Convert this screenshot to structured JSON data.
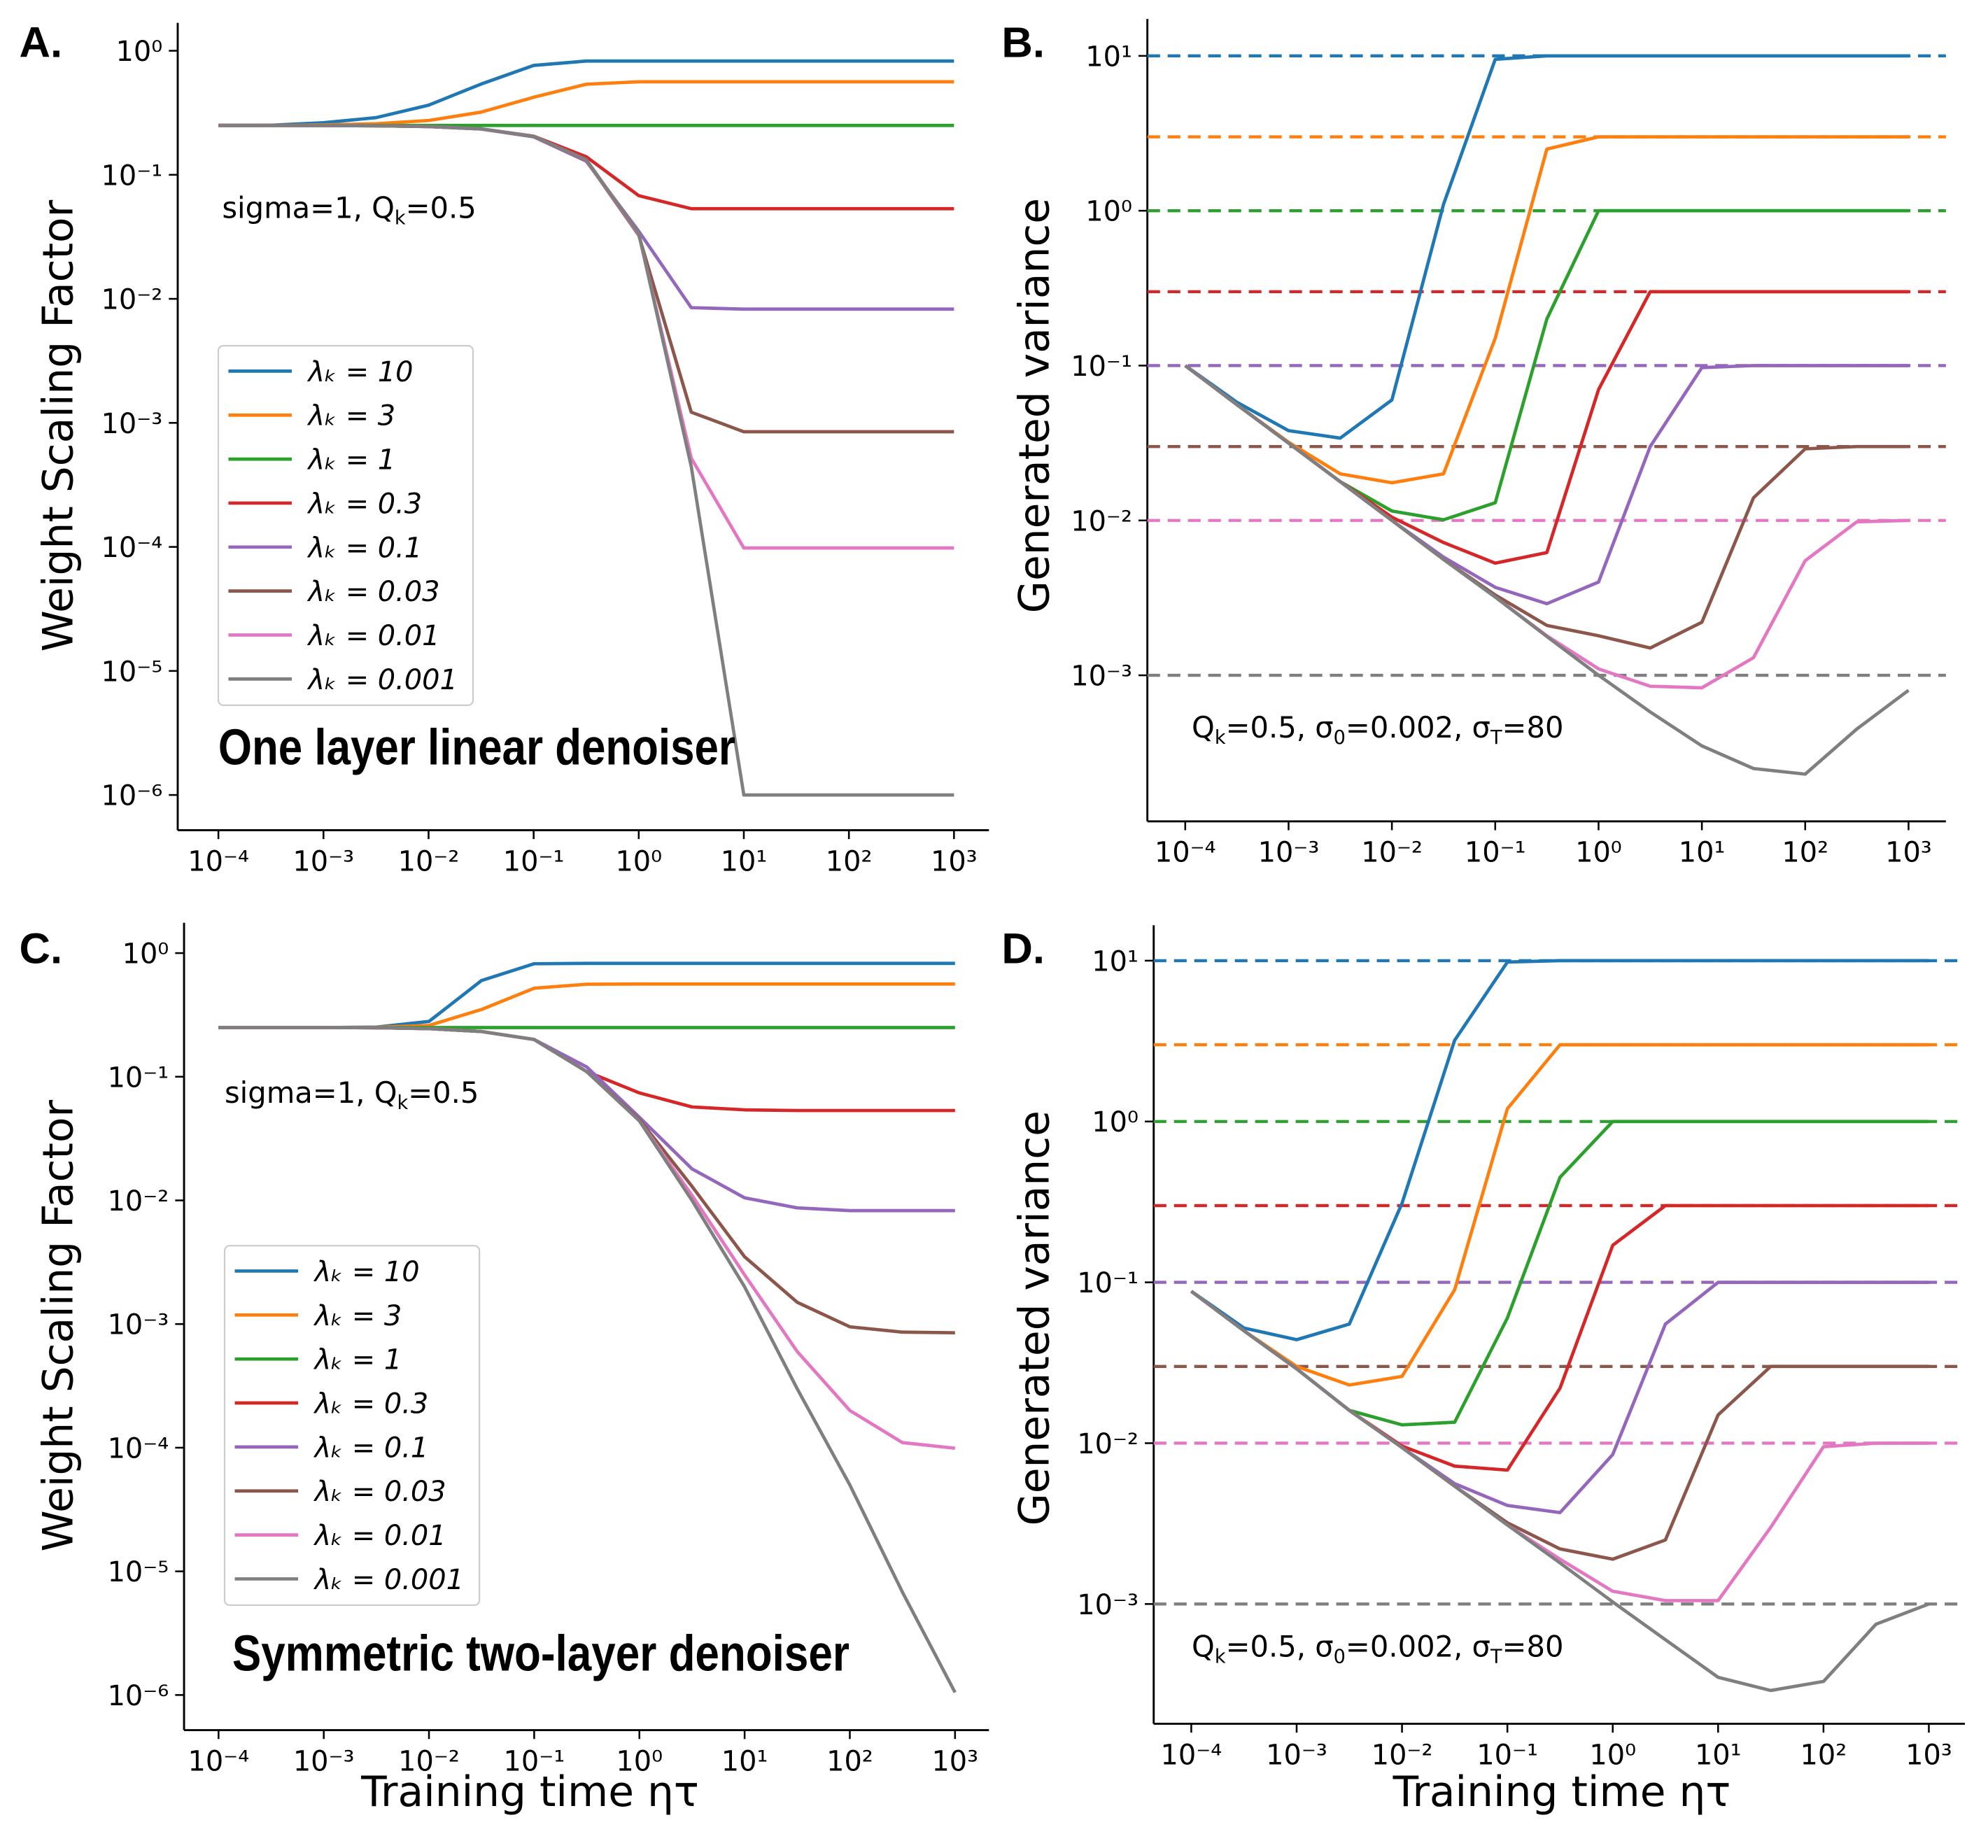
{
  "chart_data": [
    {
      "type": "line",
      "label": "A.",
      "ylabel": "Weight Scaling Factor",
      "title": "One layer linear denoiser",
      "annotation": [
        "sigma=1, Q",
        "k",
        "=0.5"
      ],
      "xscale": "log",
      "yscale": "log",
      "legend": "center left",
      "xlim": [
        4.1e-05,
        2150
      ],
      "ylim": [
        5.2e-07,
        1.68
      ],
      "xticks": [
        {
          "value": 0.0001,
          "label": "10⁻⁴"
        },
        {
          "value": 0.001,
          "label": "10⁻³"
        },
        {
          "value": 0.01,
          "label": "10⁻²"
        },
        {
          "value": 0.1,
          "label": "10⁻¹"
        },
        {
          "value": 1,
          "label": "10⁰"
        },
        {
          "value": 10,
          "label": "10¹"
        },
        {
          "value": 100,
          "label": "10²"
        },
        {
          "value": 1000,
          "label": "10³"
        }
      ],
      "yticks": [
        {
          "value": 1,
          "label": "10⁰"
        },
        {
          "value": 0.1,
          "label": "10⁻¹"
        },
        {
          "value": 0.01,
          "label": "10⁻²"
        },
        {
          "value": 0.001,
          "label": "10⁻³"
        },
        {
          "value": 0.0001,
          "label": "10⁻⁴"
        },
        {
          "value": 1e-05,
          "label": "10⁻⁵"
        },
        {
          "value": 1e-06,
          "label": "10⁻⁶"
        }
      ],
      "x": [
        0.0001,
        0.000316,
        0.001,
        0.00316,
        0.01,
        0.0316,
        0.1,
        0.316,
        1,
        3.16,
        10,
        31.6,
        100,
        316,
        1000
      ],
      "series": [
        {
          "name": "λₖ = 10",
          "color": "#1f77b4",
          "values": [
            0.25,
            0.251,
            0.263,
            0.289,
            0.364,
            0.539,
            0.762,
            0.826,
            0.826,
            0.826,
            0.826,
            0.826,
            0.826,
            0.826,
            0.826
          ]
        },
        {
          "name": "λₖ = 3",
          "color": "#ff7f0e",
          "values": [
            0.25,
            0.25,
            0.2525,
            0.258,
            0.274,
            0.32,
            0.422,
            0.537,
            0.5624,
            0.5625,
            0.5625,
            0.5625,
            0.5625,
            0.5625,
            0.5625
          ]
        },
        {
          "name": "λₖ = 1",
          "color": "#2ca02c",
          "values": [
            0.25,
            0.25,
            0.25,
            0.25,
            0.25,
            0.25,
            0.25,
            0.25,
            0.25,
            0.25,
            0.25,
            0.25,
            0.25,
            0.25,
            0.25
          ]
        },
        {
          "name": "λₖ = 0.3",
          "color": "#d62728",
          "values": [
            0.25,
            0.25,
            0.2495,
            0.2484,
            0.245,
            0.2345,
            0.205,
            0.14,
            0.0679,
            0.0533,
            0.0533,
            0.0533,
            0.0533,
            0.0533,
            0.0533
          ]
        },
        {
          "name": "λₖ = 0.1",
          "color": "#9467bd",
          "values": [
            0.25,
            0.25,
            0.2498,
            0.2485,
            0.2447,
            0.2338,
            0.2024,
            0.129,
            0.0351,
            0.00849,
            0.00826,
            0.00826,
            0.00826,
            0.00826,
            0.00826
          ]
        },
        {
          "name": "λₖ = 0.03",
          "color": "#8c564b",
          "values": [
            0.25,
            0.25,
            0.2498,
            0.2484,
            0.2449,
            0.2343,
            0.2036,
            0.1309,
            0.0326,
            0.00122,
            0.000848,
            0.000848,
            0.000848,
            0.000848,
            0.000848
          ]
        },
        {
          "name": "λₖ = 0.01",
          "color": "#e377c2",
          "values": [
            0.25,
            0.25,
            0.2498,
            0.2484,
            0.245,
            0.2345,
            0.2043,
            0.132,
            0.0333,
            0.00052,
            9.8e-05,
            9.8e-05,
            9.8e-05,
            9.8e-05,
            9.8e-05
          ]
        },
        {
          "name": "λₖ = 0.001",
          "color": "#7f7f7f",
          "values": [
            0.25,
            0.25,
            0.2498,
            0.2484,
            0.245,
            0.2347,
            0.2047,
            0.1327,
            0.0338,
            0.000445,
            1e-06,
            1e-06,
            1e-06,
            1e-06,
            1e-06
          ]
        }
      ]
    },
    {
      "type": "line",
      "label": "B.",
      "ylabel": "Generated variance",
      "annotation": [
        "Q",
        "k",
        "=0.5, σ",
        "0",
        "=0.002, σ",
        "T",
        "=80"
      ],
      "xscale": "log",
      "yscale": "log",
      "reference_style": "dashed",
      "xlim": [
        4.3e-05,
        2300
      ],
      "ylim": [
        0.000114,
        17.3
      ],
      "xticks": [
        {
          "value": 0.0001,
          "label": "10⁻⁴"
        },
        {
          "value": 0.001,
          "label": "10⁻³"
        },
        {
          "value": 0.01,
          "label": "10⁻²"
        },
        {
          "value": 0.1,
          "label": "10⁻¹"
        },
        {
          "value": 1,
          "label": "10⁰"
        },
        {
          "value": 10,
          "label": "10¹"
        },
        {
          "value": 100,
          "label": "10²"
        },
        {
          "value": 1000,
          "label": "10³"
        }
      ],
      "yticks": [
        {
          "value": 10,
          "label": "10¹"
        },
        {
          "value": 1,
          "label": "10⁰"
        },
        {
          "value": 0.1,
          "label": "10⁻¹"
        },
        {
          "value": 0.01,
          "label": "10⁻²"
        },
        {
          "value": 0.001,
          "label": "10⁻³"
        }
      ],
      "x": [
        0.0001,
        0.000316,
        0.001,
        0.00316,
        0.01,
        0.0316,
        0.1,
        0.316,
        1,
        3.16,
        10,
        31.6,
        100,
        316,
        1000
      ],
      "series": [
        {
          "color": "#1f77b4",
          "reference": 10,
          "values": [
            0.1,
            0.058,
            0.038,
            0.034,
            0.06,
            1.1,
            9.5,
            10,
            10,
            10,
            10,
            10,
            10,
            10,
            10
          ]
        },
        {
          "color": "#ff7f0e",
          "reference": 3,
          "values": [
            0.1,
            0.056,
            0.032,
            0.02,
            0.0175,
            0.02,
            0.15,
            2.5,
            3,
            3,
            3,
            3,
            3,
            3,
            3
          ]
        },
        {
          "color": "#2ca02c",
          "reference": 1,
          "values": [
            0.1,
            0.056,
            0.0316,
            0.0178,
            0.0115,
            0.0101,
            0.013,
            0.2,
            1,
            1,
            1,
            1,
            1,
            1,
            1
          ]
        },
        {
          "color": "#d62728",
          "reference": 0.3,
          "values": [
            0.1,
            0.056,
            0.0316,
            0.0178,
            0.0105,
            0.0072,
            0.0053,
            0.0062,
            0.07,
            0.3,
            0.3,
            0.3,
            0.3,
            0.3,
            0.3
          ]
        },
        {
          "color": "#9467bd",
          "reference": 0.1,
          "values": [
            0.1,
            0.056,
            0.0316,
            0.0178,
            0.01,
            0.0058,
            0.0037,
            0.0029,
            0.004,
            0.03,
            0.097,
            0.1,
            0.1,
            0.1,
            0.1
          ]
        },
        {
          "color": "#8c564b",
          "reference": 0.03,
          "values": [
            0.1,
            0.056,
            0.0316,
            0.0178,
            0.01,
            0.0056,
            0.0033,
            0.0021,
            0.0018,
            0.0015,
            0.0022,
            0.014,
            0.029,
            0.03,
            0.03
          ]
        },
        {
          "color": "#e377c2",
          "reference": 0.01,
          "values": [
            0.1,
            0.056,
            0.0316,
            0.0178,
            0.01,
            0.0056,
            0.0032,
            0.0018,
            0.0011,
            0.00085,
            0.00083,
            0.0013,
            0.0055,
            0.0098,
            0.01
          ]
        },
        {
          "color": "#7f7f7f",
          "reference": 0.001,
          "values": [
            0.1,
            0.056,
            0.0316,
            0.0178,
            0.01,
            0.0056,
            0.0032,
            0.00178,
            0.001,
            0.00058,
            0.00035,
            0.00025,
            0.00023,
            0.00045,
            0.0008
          ]
        }
      ]
    },
    {
      "type": "line",
      "label": "C.",
      "ylabel": "Weight Scaling Factor",
      "xlabel": "Training time ητ",
      "title": "Symmetric two-layer denoiser",
      "annotation": [
        "sigma=1, Q",
        "k",
        "=0.5"
      ],
      "xscale": "log",
      "yscale": "log",
      "legend": "center left",
      "xlim": [
        4.7e-05,
        2100
      ],
      "ylim": [
        5.2e-07,
        1.76
      ],
      "xticks": [
        {
          "value": 0.0001,
          "label": "10⁻⁴"
        },
        {
          "value": 0.001,
          "label": "10⁻³"
        },
        {
          "value": 0.01,
          "label": "10⁻²"
        },
        {
          "value": 0.1,
          "label": "10⁻¹"
        },
        {
          "value": 1,
          "label": "10⁰"
        },
        {
          "value": 10,
          "label": "10¹"
        },
        {
          "value": 100,
          "label": "10²"
        },
        {
          "value": 1000,
          "label": "10³"
        }
      ],
      "yticks": [
        {
          "value": 1,
          "label": "10⁰"
        },
        {
          "value": 0.1,
          "label": "10⁻¹"
        },
        {
          "value": 0.01,
          "label": "10⁻²"
        },
        {
          "value": 0.001,
          "label": "10⁻³"
        },
        {
          "value": 0.0001,
          "label": "10⁻⁴"
        },
        {
          "value": 1e-05,
          "label": "10⁻⁵"
        },
        {
          "value": 1e-06,
          "label": "10⁻⁶"
        }
      ],
      "x": [
        0.0001,
        0.000316,
        0.001,
        0.00316,
        0.01,
        0.0316,
        0.1,
        0.316,
        1,
        3.16,
        10,
        31.6,
        100,
        316,
        1000
      ],
      "series": [
        {
          "name": "λₖ = 10",
          "color": "#1f77b4",
          "values": [
            0.25,
            0.25,
            0.25,
            0.252,
            0.28,
            0.6,
            0.82,
            0.826,
            0.826,
            0.826,
            0.826,
            0.826,
            0.826,
            0.826,
            0.826
          ]
        },
        {
          "name": "λₖ = 3",
          "color": "#ff7f0e",
          "values": [
            0.25,
            0.25,
            0.25,
            0.251,
            0.26,
            0.35,
            0.52,
            0.56,
            0.5625,
            0.5625,
            0.5625,
            0.5625,
            0.5625,
            0.5625,
            0.5625
          ]
        },
        {
          "name": "λₖ = 1",
          "color": "#2ca02c",
          "values": [
            0.25,
            0.25,
            0.25,
            0.25,
            0.25,
            0.25,
            0.25,
            0.25,
            0.25,
            0.25,
            0.25,
            0.25,
            0.25,
            0.25,
            0.25
          ]
        },
        {
          "name": "λₖ = 0.3",
          "color": "#d62728",
          "values": [
            0.25,
            0.25,
            0.25,
            0.249,
            0.245,
            0.232,
            0.2,
            0.11,
            0.074,
            0.057,
            0.054,
            0.0533,
            0.0533,
            0.0533,
            0.0533
          ]
        },
        {
          "name": "λₖ = 0.1",
          "color": "#9467bd",
          "values": [
            0.25,
            0.25,
            0.25,
            0.249,
            0.245,
            0.232,
            0.2,
            0.12,
            0.047,
            0.018,
            0.0105,
            0.0087,
            0.00826,
            0.00826,
            0.00826
          ]
        },
        {
          "name": "λₖ = 0.03",
          "color": "#8c564b",
          "values": [
            0.25,
            0.25,
            0.25,
            0.249,
            0.245,
            0.232,
            0.2,
            0.11,
            0.045,
            0.013,
            0.0035,
            0.0015,
            0.00095,
            0.00086,
            0.00085
          ]
        },
        {
          "name": "λₖ = 0.01",
          "color": "#e377c2",
          "values": [
            0.25,
            0.25,
            0.25,
            0.249,
            0.245,
            0.232,
            0.2,
            0.11,
            0.044,
            0.011,
            0.0025,
            0.0006,
            0.0002,
            0.00011,
            9.9e-05
          ]
        },
        {
          "name": "λₖ = 0.001",
          "color": "#7f7f7f",
          "values": [
            0.25,
            0.25,
            0.25,
            0.249,
            0.245,
            0.232,
            0.2,
            0.11,
            0.044,
            0.01,
            0.002,
            0.0003,
            5e-05,
            6.8e-06,
            1.05e-06
          ]
        }
      ]
    },
    {
      "type": "line",
      "label": "D.",
      "ylabel": "Generated variance",
      "xlabel": "Training time ητ",
      "annotation": [
        "Q",
        "k",
        "=0.5, σ",
        "0",
        "=0.002, σ",
        "T",
        "=80"
      ],
      "xscale": "log",
      "yscale": "log",
      "reference_style": "dashed",
      "xlim": [
        4.4e-05,
        2200
      ],
      "ylim": [
        0.00018,
        16.6
      ],
      "xticks": [
        {
          "value": 0.0001,
          "label": "10⁻⁴"
        },
        {
          "value": 0.001,
          "label": "10⁻³"
        },
        {
          "value": 0.01,
          "label": "10⁻²"
        },
        {
          "value": 0.1,
          "label": "10⁻¹"
        },
        {
          "value": 1,
          "label": "10⁰"
        },
        {
          "value": 10,
          "label": "10¹"
        },
        {
          "value": 100,
          "label": "10²"
        },
        {
          "value": 1000,
          "label": "10³"
        }
      ],
      "yticks": [
        {
          "value": 10,
          "label": "10¹"
        },
        {
          "value": 1,
          "label": "10⁰"
        },
        {
          "value": 0.1,
          "label": "10⁻¹"
        },
        {
          "value": 0.01,
          "label": "10⁻²"
        },
        {
          "value": 0.001,
          "label": "10⁻³"
        }
      ],
      "x": [
        0.0001,
        0.000316,
        0.001,
        0.00316,
        0.01,
        0.0316,
        0.1,
        0.316,
        1,
        3.16,
        10,
        31.6,
        100,
        316,
        1000
      ],
      "series": [
        {
          "color": "#1f77b4",
          "reference": 10,
          "values": [
            0.088,
            0.052,
            0.044,
            0.055,
            0.31,
            3.2,
            9.8,
            10,
            10,
            10,
            10,
            10,
            10,
            10,
            10
          ]
        },
        {
          "color": "#ff7f0e",
          "reference": 3,
          "values": [
            0.088,
            0.05,
            0.03,
            0.023,
            0.026,
            0.09,
            1.2,
            3,
            3,
            3,
            3,
            3,
            3,
            3,
            3
          ]
        },
        {
          "color": "#2ca02c",
          "reference": 1,
          "values": [
            0.088,
            0.05,
            0.029,
            0.016,
            0.013,
            0.0135,
            0.06,
            0.45,
            1,
            1,
            1,
            1,
            1,
            1,
            1
          ]
        },
        {
          "color": "#d62728",
          "reference": 0.3,
          "values": [
            0.088,
            0.05,
            0.029,
            0.016,
            0.0096,
            0.0072,
            0.0068,
            0.022,
            0.17,
            0.3,
            0.3,
            0.3,
            0.3,
            0.3,
            0.3
          ]
        },
        {
          "color": "#9467bd",
          "reference": 0.1,
          "values": [
            0.088,
            0.05,
            0.029,
            0.016,
            0.0094,
            0.0056,
            0.0041,
            0.0037,
            0.0085,
            0.055,
            0.1,
            0.1,
            0.1,
            0.1,
            0.1
          ]
        },
        {
          "color": "#8c564b",
          "reference": 0.03,
          "values": [
            0.088,
            0.05,
            0.029,
            0.016,
            0.0094,
            0.0054,
            0.0032,
            0.0022,
            0.0019,
            0.0025,
            0.015,
            0.03,
            0.03,
            0.03,
            0.03
          ]
        },
        {
          "color": "#e377c2",
          "reference": 0.01,
          "values": [
            0.088,
            0.05,
            0.029,
            0.016,
            0.0094,
            0.0054,
            0.0031,
            0.0019,
            0.0012,
            0.00105,
            0.00105,
            0.003,
            0.0095,
            0.01,
            0.01
          ]
        },
        {
          "color": "#7f7f7f",
          "reference": 0.001,
          "values": [
            0.088,
            0.05,
            0.029,
            0.016,
            0.0094,
            0.0054,
            0.0031,
            0.0018,
            0.00103,
            0.0006,
            0.00035,
            0.00029,
            0.00033,
            0.00075,
            0.001
          ]
        }
      ]
    }
  ]
}
